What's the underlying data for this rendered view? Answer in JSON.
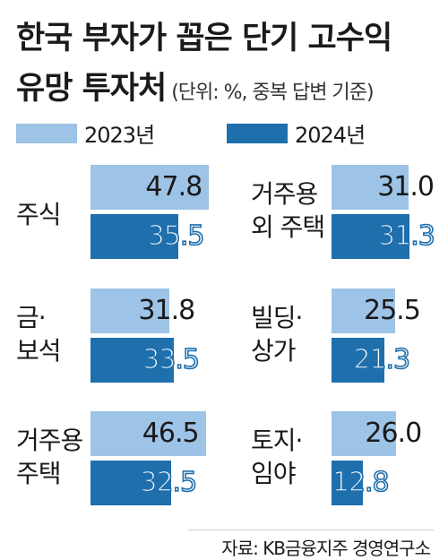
{
  "title_line1": "한국 부자가 꼽은 단기 고수익",
  "title_line2": "유망 투자처",
  "unit_note": "(단위: %, 중복 답변 기준)",
  "source": "자료: KB금융지주 경영연구소",
  "colors": {
    "y2023": "#9dc3e6",
    "y2024": "#1f6fad"
  },
  "chart_data": {
    "type": "bar",
    "title": "한국 부자가 꼽은 단기 고수익 유망 투자처",
    "unit": "%",
    "legend": [
      "2023년",
      "2024년"
    ],
    "categories": [
      "주식",
      "거주용 외 주택",
      "금·보석",
      "빌딩·상가",
      "거주용 주택",
      "토지·임야"
    ],
    "series": [
      {
        "name": "2023년",
        "values": [
          47.8,
          31.0,
          31.8,
          25.5,
          46.5,
          26.0
        ]
      },
      {
        "name": "2024년",
        "values": [
          35.5,
          31.3,
          33.5,
          21.3,
          32.5,
          12.8
        ]
      }
    ],
    "value_labels_2023": [
      "47.8",
      "31.0",
      "31.8",
      "25.5",
      "46.5",
      "26.0"
    ],
    "value_labels_2024": [
      "35.5",
      "31.3",
      "33.5",
      "21.3",
      "32.5",
      "12.8"
    ],
    "category_labels": [
      "주식",
      "거주용\n외 주택",
      "금·\n보석",
      "빌딩·\n상가",
      "거주용\n주택",
      "토지·\n임야"
    ],
    "axis_visible": false,
    "grid": false,
    "legend_position": "top-left"
  }
}
